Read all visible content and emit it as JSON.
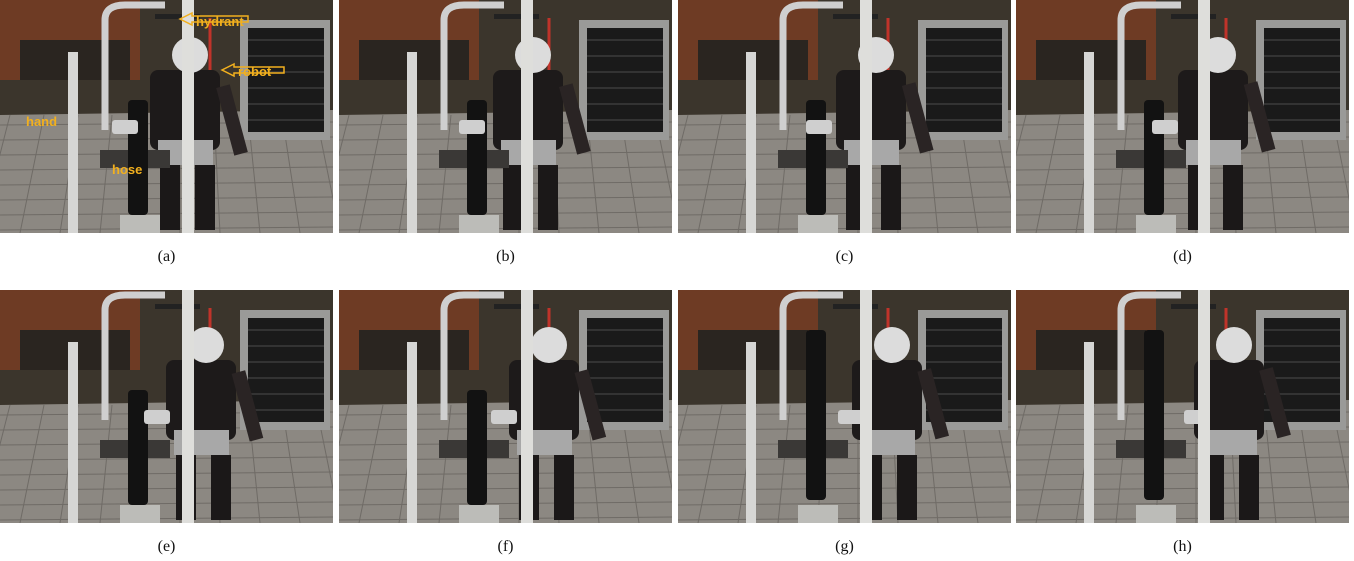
{
  "panels": [
    {
      "caption": "(a)",
      "annotations": [
        "hydrant",
        "robot",
        "hand",
        "hose"
      ]
    },
    {
      "caption": "(b)"
    },
    {
      "caption": "(c)"
    },
    {
      "caption": "(d)"
    },
    {
      "caption": "(e)"
    },
    {
      "caption": "(f)"
    },
    {
      "caption": "(g)"
    },
    {
      "caption": "(h)"
    }
  ]
}
